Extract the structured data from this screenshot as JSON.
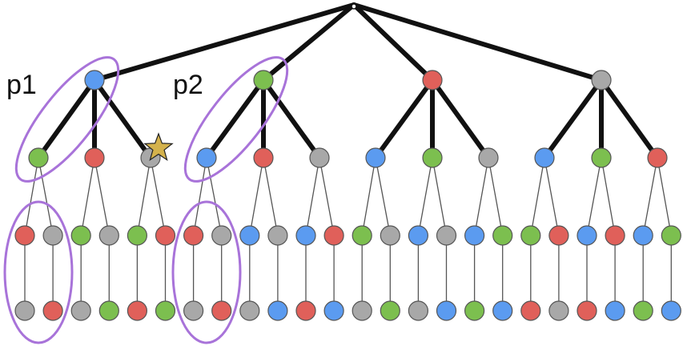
{
  "labels": {
    "p1": "p1",
    "p2": "p2"
  },
  "colors": {
    "blue": "#5B9BF0",
    "green": "#7CBF4F",
    "red": "#E0605A",
    "gray": "#A8A8A8",
    "highlight": "#A873D9",
    "star": "#D4B24C",
    "edge": "#111111",
    "thin_edge": "#555555"
  },
  "tree": {
    "root": "gray",
    "level1": [
      "blue",
      "green",
      "red",
      "gray"
    ],
    "level2": [
      "green",
      "red",
      "gray",
      "blue",
      "red",
      "gray",
      "blue",
      "green",
      "gray",
      "blue",
      "green",
      "red"
    ],
    "level3": [
      "red",
      "gray",
      "green",
      "gray",
      "green",
      "red",
      "red",
      "gray",
      "blue",
      "gray",
      "blue",
      "red",
      "green",
      "gray",
      "blue",
      "gray",
      "blue",
      "green",
      "green",
      "red",
      "blue",
      "red",
      "blue",
      "green"
    ],
    "level4": [
      "gray",
      "red",
      "gray",
      "green",
      "red",
      "green",
      "gray",
      "red",
      "gray",
      "blue",
      "red",
      "blue",
      "gray",
      "green",
      "gray",
      "blue",
      "green",
      "blue",
      "red",
      "gray",
      "red",
      "blue",
      "green",
      "blue"
    ]
  },
  "marks": {
    "star_on": "level2 node 3",
    "star_icon": "star-icon"
  }
}
